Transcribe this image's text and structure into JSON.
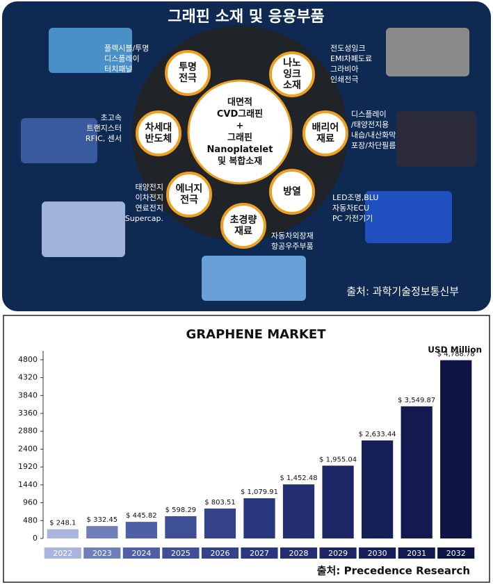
{
  "infographic": {
    "title": "그래핀 소재 및 응용부품",
    "center_lines": [
      "대면적",
      "CVD그래핀",
      "+",
      "그래핀",
      "Nanoplatelet",
      "및 복합소재"
    ],
    "nodes": [
      {
        "label_lines": [
          "투명",
          "전극"
        ],
        "desc_lines": [
          "플렉시블/투명",
          "디스플레이",
          "터치패널"
        ]
      },
      {
        "label_lines": [
          "나노",
          "잉크",
          "소재"
        ],
        "desc_lines": [
          "전도성잉크",
          "EMI차폐도료",
          "그라비아",
          "인쇄전극"
        ]
      },
      {
        "label_lines": [
          "차세대",
          "반도체"
        ],
        "desc_lines": [
          "초고속",
          "트랜지스터",
          "RFIC, 센서"
        ]
      },
      {
        "label_lines": [
          "배리어",
          "재료"
        ],
        "desc_lines": [
          "디스플레이",
          "/태양전지용",
          "내습/내산화막",
          "포장/차단필름"
        ]
      },
      {
        "label_lines": [
          "에너지",
          "전극"
        ],
        "desc_lines": [
          "태양전지",
          "이차전지",
          "연료전지",
          "Supercap."
        ]
      },
      {
        "label_lines": [
          "방열"
        ],
        "desc_lines": [
          "LED조명,BLU",
          "자동차ECU",
          "PC 가전기기"
        ]
      },
      {
        "label_lines": [
          "초경량",
          "재료"
        ],
        "desc_lines": [
          "자동차외장재",
          "항공우주부품"
        ]
      }
    ],
    "source": "출처: 과학기술정보통신부"
  },
  "chart_data": {
    "type": "bar",
    "title": "GRAPHENE MARKET",
    "unit_label": "USD Million",
    "categories": [
      "2022",
      "2023",
      "2024",
      "2025",
      "2026",
      "2027",
      "2028",
      "2029",
      "2030",
      "2031",
      "2032"
    ],
    "values": [
      248.1,
      332.45,
      445.82,
      598.29,
      803.51,
      1079.91,
      1452.48,
      1955.04,
      2633.44,
      3549.87,
      4788.78
    ],
    "value_labels": [
      "$ 248.1",
      "$ 332.45",
      "$ 445.82",
      "$ 598.29",
      "$ 803.51",
      "$ 1,079.91",
      "$ 1,452.48",
      "$ 1,955.04",
      "$ 2,633.44",
      "$ 3,549.87",
      "$ 4,788.78"
    ],
    "colors": [
      "#a9b5dc",
      "#6f7fba",
      "#4f5fa6",
      "#3f4f96",
      "#34428a",
      "#2a377d",
      "#222e70",
      "#1c2664",
      "#171f58",
      "#131a4f",
      "#0e1446"
    ],
    "ylim": [
      0,
      5040
    ],
    "yticks": [
      0,
      480,
      960,
      1440,
      1920,
      2400,
      2880,
      3360,
      3840,
      4320,
      4800
    ],
    "source": "출처: Precedence Research"
  }
}
